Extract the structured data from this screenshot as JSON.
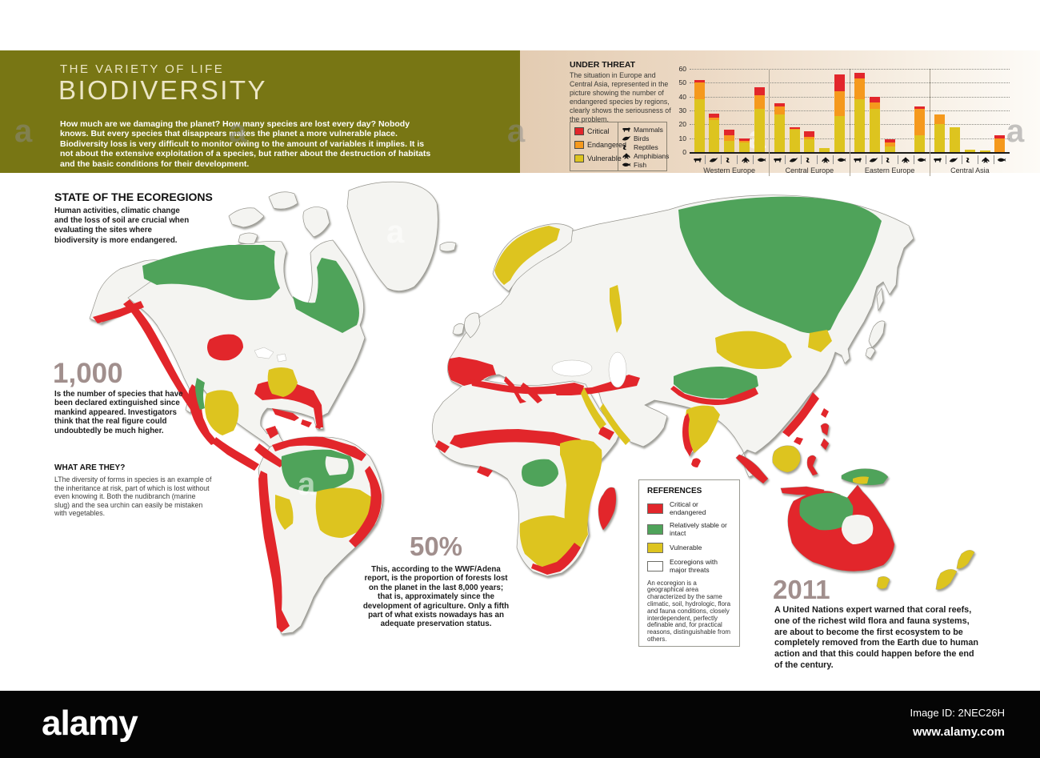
{
  "colors": {
    "olive": "#787614",
    "critical": "#e2262b",
    "endangered": "#f5991d",
    "vulnerable": "#ddc41f",
    "map_green": "#4fa35a",
    "map_neutral": "#f4f4f1",
    "stat": "#a18f8d"
  },
  "header": {
    "kicker": "THE VARIETY OF LIFE",
    "title": "BIODIVERSITY",
    "intro": "How much are we damaging the planet? How many species are lost every day? Nobody knows. But every species that disappears makes the planet a more vulnerable place. Biodiversity loss is very difficult to monitor owing to the amount of variables it implies. It is not about the extensive exploitation of a species, but rather about the destruction of habitats and the basic conditions for their development."
  },
  "under_threat": {
    "title": "UNDER THREAT",
    "description": "The situation in Europe and Central Asia, represented in the picture showing the number of endangered species by regions, clearly shows the seriousness of the problem.",
    "status_legend": [
      {
        "label": "Critical",
        "color": "#e2262b"
      },
      {
        "label": "Endangered",
        "color": "#f5991d"
      },
      {
        "label": "Vulnerable",
        "color": "#ddc41f"
      }
    ],
    "animal_legend": [
      {
        "name": "Mammals",
        "icon": "mammals-icon"
      },
      {
        "name": "Birds",
        "icon": "birds-icon"
      },
      {
        "name": "Reptiles",
        "icon": "reptiles-icon"
      },
      {
        "name": "Amphibians",
        "icon": "amphibians-icon"
      },
      {
        "name": "Fish",
        "icon": "fish-icon"
      }
    ]
  },
  "chart_data": {
    "type": "bar",
    "stacked": true,
    "title": "UNDER THREAT",
    "ylim": [
      0,
      60
    ],
    "yticks": [
      0,
      10,
      20,
      30,
      40,
      50,
      60
    ],
    "grid": "dotted-horizontal",
    "legend_position": "left",
    "categories": [
      "Mammals",
      "Birds",
      "Reptiles",
      "Amphibians",
      "Fish"
    ],
    "stack_order": [
      "vulnerable",
      "endangered",
      "critical"
    ],
    "series_colors": {
      "vulnerable": "#ddc41f",
      "endangered": "#f5991d",
      "critical": "#e2262b"
    },
    "regions": [
      {
        "name": "Western Europe",
        "bars": [
          [
            38,
            12,
            2
          ],
          [
            23,
            2,
            3
          ],
          [
            8,
            4,
            4
          ],
          [
            7,
            1,
            2
          ],
          [
            31,
            10,
            6
          ]
        ]
      },
      {
        "name": "Central Europe",
        "bars": [
          [
            27,
            6,
            2
          ],
          [
            16,
            1,
            1
          ],
          [
            9,
            2,
            4
          ],
          [
            3,
            0,
            0
          ],
          [
            26,
            18,
            12
          ]
        ]
      },
      {
        "name": "Eastern Europe",
        "bars": [
          [
            38,
            15,
            4
          ],
          [
            31,
            5,
            4
          ],
          [
            4,
            3,
            2
          ],
          [
            0,
            0,
            0
          ],
          [
            12,
            19,
            2
          ]
        ]
      },
      {
        "name": "Central Asia",
        "bars": [
          [
            20,
            7,
            0
          ],
          [
            18,
            0,
            0
          ],
          [
            2,
            0,
            0
          ],
          [
            1,
            0,
            0
          ],
          [
            0,
            10,
            2
          ]
        ]
      }
    ]
  },
  "map_section": {
    "heading": "STATE OF THE ECOREGIONS",
    "description": "Human activities, climatic change and the loss of soil are crucial when evaluating the sites where biodiversity is more endangered.",
    "stat_1000": {
      "value": "1,000",
      "text": "Is the number of species that have been declared extinguished since mankind appeared. Investigators think that the real figure could undoubtedly be much higher."
    },
    "what_are_they": {
      "title": "WHAT ARE THEY?",
      "text": "LThe diversity of forms in species is an example of the inheritance at risk, part of which is lost without even knowing it. Both the nudibranch (marine slug) and the sea urchin can easily be mistaken with vegetables."
    },
    "stat_50": {
      "value": "50%",
      "text": "This, according to the WWF/Adena report, is the proportion of forests lost on the planet in the last 8,000 years; that is, approximately since the development of agriculture. Only a fifth part of what exists nowadays has an adequate preservation status."
    },
    "stat_2011": {
      "value": "2011",
      "text": "A United Nations expert warned that coral reefs, one of the richest wild flora and fauna systems, are about to become the first ecosystem to be completely removed from the Earth due to human action and that this could happen before the end of the century."
    },
    "references": {
      "title": "REFERENCES",
      "items": [
        {
          "label": "Critical or endangered",
          "color": "#e2262b"
        },
        {
          "label": "Relatively stable or intact",
          "color": "#4fa35a"
        },
        {
          "label": "Vulnerable",
          "color": "#ddc41f"
        },
        {
          "label": "Ecoregions with major threats",
          "color": "#ffffff"
        }
      ],
      "note": "An ecoregion is a geographical area characterized by the same climatic, soil, hydrologic, flora and fauna conditions, closely interdependent, perfectly definable and, for practical reasons, distinguishable from others."
    }
  },
  "footer": {
    "logo": "alamy",
    "image_id": "Image ID: 2NEC26H",
    "url": "www.alamy.com"
  },
  "watermark": {
    "letter": "a"
  }
}
